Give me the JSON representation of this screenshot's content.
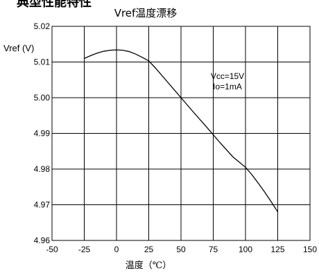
{
  "header_fragment": "典型性能特性",
  "chart_data": {
    "type": "line",
    "title": "Vref温度漂移",
    "xlabel": "温度（℃）",
    "ylabel": "Vref (V)",
    "xlim": [
      -50,
      150
    ],
    "ylim": [
      4.96,
      5.02
    ],
    "x_ticks": [
      "-50",
      "-25",
      "0",
      "25",
      "50",
      "75",
      "100",
      "125",
      "150"
    ],
    "y_ticks": [
      "4.96",
      "4.97",
      "4.98",
      "4.99",
      "5.00",
      "5.01",
      "5.02"
    ],
    "grid": true,
    "annotations": [
      "Vcc=15V",
      "Io=1mA"
    ],
    "series": [
      {
        "x": [
          -25,
          -20,
          -15,
          -10,
          -5,
          0,
          5,
          10,
          15,
          20,
          25,
          30,
          40,
          50,
          60,
          70,
          80,
          90,
          100,
          105,
          110,
          115,
          120,
          125
        ],
        "y": [
          5.011,
          5.0118,
          5.0125,
          5.013,
          5.0133,
          5.0134,
          5.0133,
          5.0129,
          5.0122,
          5.0113,
          5.0103,
          5.0084,
          5.0042,
          5.0,
          4.9958,
          4.9917,
          4.9875,
          4.9835,
          4.9805,
          4.9784,
          4.976,
          4.9735,
          4.9708,
          4.968
        ]
      }
    ]
  }
}
